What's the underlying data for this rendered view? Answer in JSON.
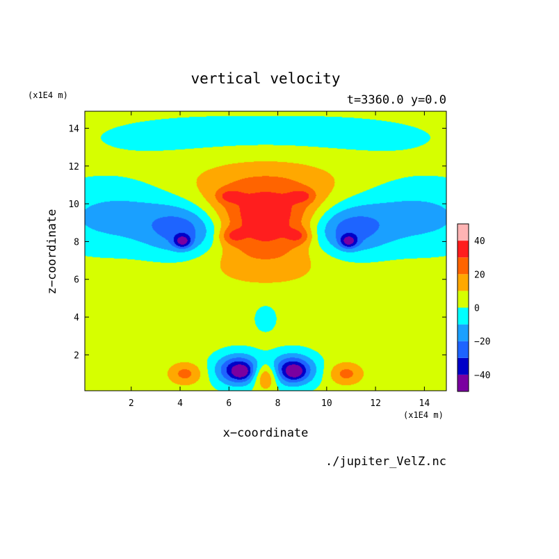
{
  "chart_data": {
    "type": "heatmap",
    "title": "vertical velocity",
    "subtitle": "t=3360.0 y=0.0",
    "xlabel": "x−coordinate",
    "ylabel": "z−coordinate",
    "x_unit": "(x1E4 m)",
    "y_unit": "(x1E4 m)",
    "source_label": "./jupiter_VelZ.nc",
    "xlim": [
      0.1,
      14.9
    ],
    "ylim": [
      0.1,
      14.9
    ],
    "x_ticks": [
      2,
      4,
      6,
      8,
      10,
      12,
      14
    ],
    "y_ticks": [
      2,
      4,
      6,
      8,
      10,
      12,
      14
    ],
    "colorbar": {
      "levels": [
        -50,
        -40,
        -30,
        -20,
        -10,
        0,
        10,
        20,
        30,
        40,
        50
      ],
      "colors": [
        "#7a00a0",
        "#0000c8",
        "#1e64ff",
        "#1aa0ff",
        "#00ffff",
        "#d6ff00",
        "#ffa800",
        "#ff6400",
        "#ff1e1e",
        "#ffb4b4"
      ],
      "tick_labels": [
        {
          "value": 40,
          "label": "40"
        },
        {
          "value": 20,
          "label": "20"
        },
        {
          "value": 0,
          "label": "0"
        },
        {
          "value": -20,
          "label": "−20"
        },
        {
          "value": -40,
          "label": "−40"
        }
      ]
    },
    "background_value": 3,
    "features": [
      {
        "kind": "updraft",
        "cx": 7.5,
        "cz": 9.3,
        "sx": 3.6,
        "sz": 3.0,
        "amp": 26
      },
      {
        "kind": "updraft",
        "cx": 7.5,
        "cz": 9.2,
        "sx": 2.3,
        "sz": 1.8,
        "amp": 12
      },
      {
        "kind": "updraft",
        "cx": 6.1,
        "cz": 8.3,
        "sx": 0.5,
        "sz": 0.45,
        "amp": 16
      },
      {
        "kind": "updraft",
        "cx": 8.9,
        "cz": 8.3,
        "sx": 0.5,
        "sz": 0.45,
        "amp": 16
      },
      {
        "kind": "updraft",
        "cx": 6.0,
        "cz": 10.4,
        "sx": 0.5,
        "sz": 0.35,
        "amp": 14
      },
      {
        "kind": "updraft",
        "cx": 9.0,
        "cz": 10.4,
        "sx": 0.5,
        "sz": 0.35,
        "amp": 14
      },
      {
        "kind": "downdraft",
        "cx": 4.4,
        "cz": 8.6,
        "sx": 1.7,
        "sz": 1.4,
        "amp": -33
      },
      {
        "kind": "downdraft",
        "cx": 10.6,
        "cz": 8.6,
        "sx": 1.7,
        "sz": 1.4,
        "amp": -33
      },
      {
        "kind": "downdraft",
        "cx": 4.1,
        "cz": 8.0,
        "sx": 0.35,
        "sz": 0.35,
        "amp": -30
      },
      {
        "kind": "downdraft",
        "cx": 10.9,
        "cz": 8.0,
        "sx": 0.35,
        "sz": 0.35,
        "amp": -30
      },
      {
        "kind": "downdraft",
        "cx": 1.6,
        "cz": 9.3,
        "sx": 3.0,
        "sz": 1.7,
        "amp": -18
      },
      {
        "kind": "downdraft",
        "cx": 13.4,
        "cz": 9.3,
        "sx": 3.0,
        "sz": 1.7,
        "amp": -18
      },
      {
        "kind": "downdraft",
        "cx": 7.5,
        "cz": 13.5,
        "sx": 6.5,
        "sz": 1.3,
        "amp": -9
      },
      {
        "kind": "downdraft",
        "cx": 6.4,
        "cz": 1.2,
        "sx": 0.9,
        "sz": 0.8,
        "amp": -45
      },
      {
        "kind": "downdraft",
        "cx": 8.6,
        "cz": 1.2,
        "sx": 0.9,
        "sz": 0.8,
        "amp": -45
      },
      {
        "kind": "downdraft",
        "cx": 6.5,
        "cz": 1.1,
        "sx": 0.3,
        "sz": 0.3,
        "amp": -20
      },
      {
        "kind": "downdraft",
        "cx": 8.7,
        "cz": 1.1,
        "sx": 0.3,
        "sz": 0.3,
        "amp": -20
      },
      {
        "kind": "updraft",
        "cx": 7.5,
        "cz": 0.9,
        "sx": 0.5,
        "sz": 0.7,
        "amp": 30
      },
      {
        "kind": "updraft",
        "cx": 4.2,
        "cz": 1.0,
        "sx": 0.7,
        "sz": 0.6,
        "amp": 20
      },
      {
        "kind": "updraft",
        "cx": 10.8,
        "cz": 1.0,
        "sx": 0.7,
        "sz": 0.6,
        "amp": 20
      },
      {
        "kind": "downdraft",
        "cx": 7.5,
        "cz": 4.0,
        "sx": 0.5,
        "sz": 0.8,
        "amp": -9
      }
    ]
  }
}
